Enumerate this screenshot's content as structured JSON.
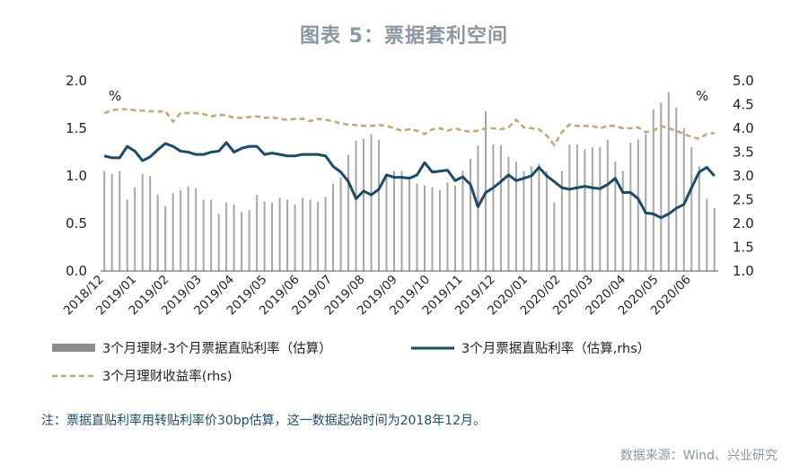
{
  "title": "图表 5：票据套利空间",
  "note": "注：票据直贴利率用转贴利率价30bp估算，这一数据起始时间为2018年12月。",
  "source": "数据来源：Wind、兴业研究",
  "colors": {
    "bar": "#a6a6a6",
    "line": "#1e4a66",
    "dash": "#c4a878",
    "title": "#8a97a3",
    "note": "#1f4e6b"
  },
  "chart_data": {
    "type": "bar+line",
    "left_unit": "%",
    "right_unit": "%",
    "y_left": {
      "min": 0.0,
      "max": 2.0,
      "ticks": [
        "0.0",
        "0.5",
        "1.0",
        "1.5",
        "2.0"
      ]
    },
    "y_right": {
      "min": 1.0,
      "max": 5.0,
      "ticks": [
        "1.0",
        "1.5",
        "2.0",
        "2.5",
        "3.0",
        "3.5",
        "4.0",
        "4.5",
        "5.0"
      ]
    },
    "x_labels": [
      "2018/12",
      "2019/01",
      "2019/02",
      "2019/03",
      "2019/04",
      "2019/05",
      "2019/06",
      "2019/07",
      "2019/08",
      "2019/09",
      "2019/10",
      "2019/11",
      "2019/12",
      "2020/01",
      "2020/02",
      "2020/03",
      "2020/04",
      "2020/05",
      "2020/06"
    ],
    "legend": {
      "bar": "3个月理财-3个月票据直贴利率（估算）",
      "line": "3个月票据直贴利率（估算,rhs）",
      "dash": "3个月理财收益率(rhs)"
    },
    "series": [
      {
        "name": "3个月理财-3个月票据直贴利率（估算）",
        "axis": "left",
        "type": "bar",
        "values": [
          1.05,
          1.02,
          1.05,
          0.75,
          0.88,
          1.02,
          1.0,
          0.8,
          0.68,
          0.82,
          0.85,
          0.89,
          0.87,
          0.75,
          0.75,
          0.6,
          0.72,
          0.7,
          0.62,
          0.64,
          0.8,
          0.73,
          0.72,
          0.77,
          0.75,
          0.7,
          0.77,
          0.75,
          0.73,
          0.78,
          0.92,
          0.98,
          1.22,
          1.37,
          1.39,
          1.44,
          1.38,
          1.0,
          1.05,
          1.05,
          0.96,
          0.92,
          0.9,
          0.88,
          0.85,
          0.93,
          0.9,
          1.05,
          1.18,
          1.32,
          1.68,
          1.33,
          1.32,
          1.2,
          1.15,
          1.05,
          1.1,
          1.13,
          1.05,
          0.72,
          1.05,
          1.33,
          1.33,
          1.28,
          1.3,
          1.3,
          1.38,
          1.15,
          1.05,
          1.35,
          1.38,
          1.44,
          1.7,
          1.77,
          1.88,
          1.72,
          1.5,
          1.3,
          1.1,
          0.76,
          0.66
        ]
      },
      {
        "name": "3个月票据直贴利率（估算,rhs）",
        "axis": "right",
        "type": "line",
        "values": [
          3.42,
          3.38,
          3.38,
          3.62,
          3.52,
          3.32,
          3.4,
          3.55,
          3.68,
          3.62,
          3.52,
          3.5,
          3.45,
          3.45,
          3.5,
          3.52,
          3.7,
          3.5,
          3.58,
          3.62,
          3.62,
          3.45,
          3.48,
          3.45,
          3.42,
          3.42,
          3.45,
          3.45,
          3.45,
          3.42,
          3.2,
          3.08,
          2.88,
          2.52,
          2.68,
          2.6,
          2.72,
          3.02,
          2.97,
          2.97,
          2.95,
          3.02,
          3.28,
          3.08,
          3.1,
          3.12,
          2.9,
          2.98,
          2.82,
          2.35,
          2.65,
          2.75,
          2.88,
          3.02,
          2.9,
          2.95,
          3.0,
          3.18,
          3.0,
          2.88,
          2.75,
          2.72,
          2.75,
          2.78,
          2.75,
          2.73,
          2.82,
          2.95,
          2.65,
          2.65,
          2.52,
          2.22,
          2.2,
          2.12,
          2.2,
          2.32,
          2.4,
          2.75,
          3.08,
          3.18,
          3.0
        ]
      },
      {
        "name": "3个月理财收益率(rhs)",
        "axis": "right",
        "type": "line-dashed",
        "values": [
          4.32,
          4.38,
          4.4,
          4.4,
          4.38,
          4.37,
          4.36,
          4.35,
          4.36,
          4.14,
          4.32,
          4.32,
          4.32,
          4.3,
          4.25,
          4.28,
          4.28,
          4.22,
          4.22,
          4.24,
          4.25,
          4.22,
          4.23,
          4.2,
          4.18,
          4.2,
          4.2,
          4.15,
          4.2,
          4.18,
          4.15,
          4.1,
          4.08,
          4.07,
          4.05,
          4.05,
          4.07,
          4.05,
          4.0,
          3.95,
          3.98,
          3.95,
          3.88,
          3.98,
          4.0,
          3.95,
          4.0,
          3.95,
          3.93,
          3.95,
          4.0,
          4.0,
          3.98,
          4.02,
          4.18,
          4.02,
          4.0,
          3.98,
          3.85,
          3.65,
          3.92,
          4.08,
          4.05,
          4.05,
          4.05,
          4.0,
          4.05,
          4.05,
          4.0,
          4.0,
          4.02,
          3.92,
          3.95,
          4.05,
          4.0,
          3.95,
          3.88,
          3.82,
          3.78,
          3.88,
          3.9
        ]
      }
    ]
  }
}
